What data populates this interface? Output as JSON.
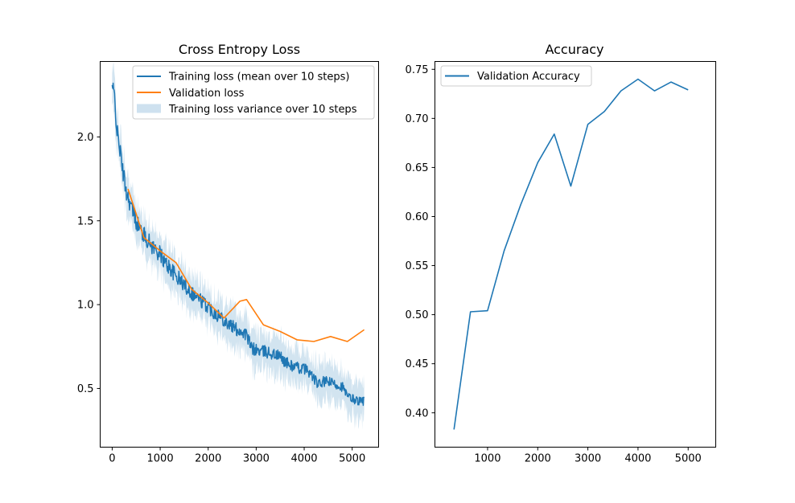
{
  "chart_data": [
    {
      "type": "line",
      "title": "Cross Entropy Loss",
      "xlabel": "",
      "ylabel": "",
      "xlim": [
        -250,
        5550
      ],
      "ylim": [
        0.15,
        2.45
      ],
      "grid": false,
      "legend_position": "upper right",
      "x_ticks": [
        0,
        1000,
        2000,
        3000,
        4000,
        5000
      ],
      "x_tick_labels": [
        "0",
        "1000",
        "2000",
        "3000",
        "4000",
        "5000"
      ],
      "y_ticks": [
        0.5,
        1.0,
        1.5,
        2.0
      ],
      "y_tick_labels": [
        "0.5",
        "1.0",
        "1.5",
        "2.0"
      ],
      "series": [
        {
          "name": "Training loss (mean over 10 steps)",
          "color": "#1f77b4",
          "kind": "line",
          "x": [
            0,
            50,
            100,
            150,
            200,
            250,
            300,
            400,
            500,
            600,
            700,
            800,
            900,
            1000,
            1100,
            1200,
            1300,
            1400,
            1500,
            1600,
            1700,
            1800,
            1900,
            2000,
            2100,
            2200,
            2300,
            2400,
            2500,
            2600,
            2700,
            2800,
            2900,
            3000,
            3100,
            3200,
            3300,
            3400,
            3500,
            3600,
            3700,
            3800,
            3900,
            4000,
            4100,
            4200,
            4300,
            4400,
            4500,
            4600,
            4700,
            4800,
            4900,
            5000,
            5100,
            5200,
            5250
          ],
          "y": [
            2.3,
            2.24,
            2.03,
            1.95,
            1.84,
            1.75,
            1.67,
            1.58,
            1.5,
            1.44,
            1.4,
            1.36,
            1.33,
            1.3,
            1.25,
            1.22,
            1.18,
            1.15,
            1.12,
            1.09,
            1.06,
            1.04,
            1.01,
            0.99,
            0.96,
            0.94,
            0.92,
            0.89,
            0.87,
            0.85,
            0.84,
            0.82,
            0.74,
            0.73,
            0.72,
            0.72,
            0.71,
            0.7,
            0.69,
            0.66,
            0.64,
            0.63,
            0.62,
            0.62,
            0.6,
            0.56,
            0.52,
            0.54,
            0.54,
            0.53,
            0.52,
            0.51,
            0.45,
            0.44,
            0.43,
            0.42,
            0.43
          ],
          "noise": 0.045
        },
        {
          "name": "Validation loss",
          "color": "#ff7f0e",
          "kind": "line",
          "x": [
            330,
            660,
            1000,
            1330,
            1660,
            2000,
            2330,
            2660,
            2800,
            3150,
            3500,
            3850,
            4200,
            4550,
            4900,
            5250
          ],
          "y": [
            1.69,
            1.4,
            1.32,
            1.25,
            1.09,
            1.01,
            0.92,
            1.02,
            1.03,
            0.88,
            0.84,
            0.79,
            0.78,
            0.81,
            0.78,
            0.85
          ]
        },
        {
          "name": "Training loss variance over 10 steps",
          "color": "#1f77b4",
          "kind": "band",
          "half_width": 0.11
        }
      ]
    },
    {
      "type": "line",
      "title": "Accuracy",
      "xlabel": "",
      "ylabel": "",
      "xlim": [
        -50,
        5550
      ],
      "ylim": [
        0.365,
        0.758
      ],
      "grid": false,
      "legend_position": "upper left",
      "x_ticks": [
        1000,
        2000,
        3000,
        4000,
        5000
      ],
      "x_tick_labels": [
        "1000",
        "2000",
        "3000",
        "4000",
        "5000"
      ],
      "y_ticks": [
        0.4,
        0.45,
        0.5,
        0.55,
        0.6,
        0.65,
        0.7,
        0.75
      ],
      "y_tick_labels": [
        "0.40",
        "0.45",
        "0.50",
        "0.55",
        "0.60",
        "0.65",
        "0.70",
        "0.75"
      ],
      "series": [
        {
          "name": "Validation Accuracy",
          "color": "#1f77b4",
          "kind": "line",
          "x": [
            330,
            660,
            1000,
            1330,
            1660,
            2000,
            2330,
            2660,
            3000,
            3330,
            3660,
            4000,
            4330,
            4660,
            5000
          ],
          "y": [
            0.383,
            0.503,
            0.504,
            0.565,
            0.612,
            0.655,
            0.684,
            0.631,
            0.694,
            0.707,
            0.728,
            0.74,
            0.728,
            0.737,
            0.729
          ]
        }
      ]
    }
  ]
}
